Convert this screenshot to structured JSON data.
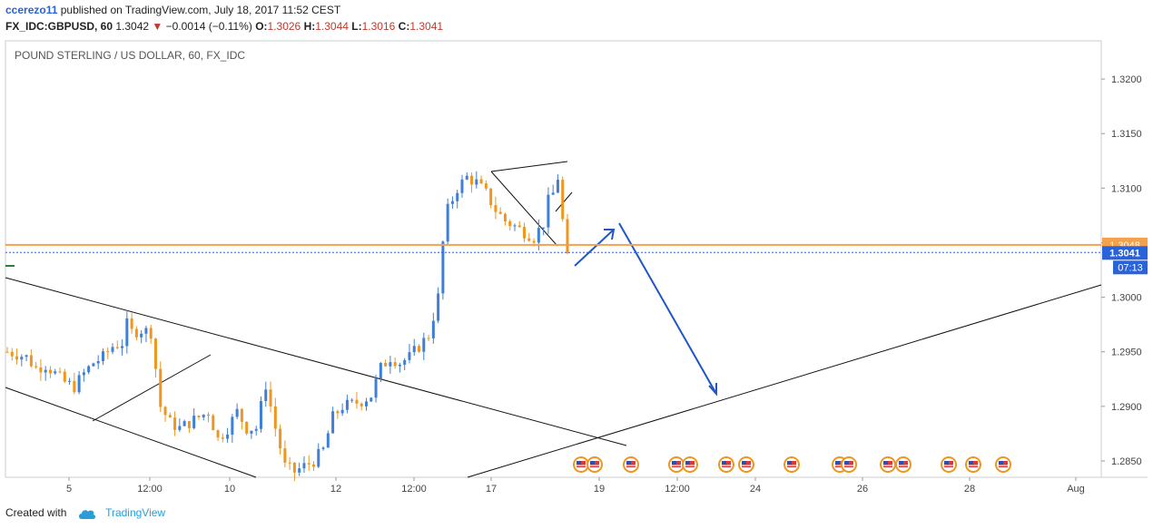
{
  "header": {
    "author": "ccerezo11",
    "published_text": "published on TradingView.com, July 18, 2017 11:52 CEST",
    "symbol": "FX_IDC:GBPUSD, 60",
    "last": "1.3042",
    "down_arrow": "▼",
    "change": "−0.0014 (−0.11%)",
    "o_label": "O:",
    "o_value": "1.3026",
    "h_label": "H:",
    "h_value": "1.3044",
    "l_label": "L:",
    "l_value": "1.3016",
    "c_label": "C:",
    "c_value": "1.3041"
  },
  "chart_data": {
    "type": "candlestick",
    "title": "POUND STERLING / US DOLLAR, 60, FX_IDC",
    "ylim": [
      1.2835,
      1.3235
    ],
    "y_ticks": [
      "1.3200",
      "1.3150",
      "1.3100",
      "1.3050",
      "1.3000",
      "1.2950",
      "1.2900",
      "1.2850"
    ],
    "x_ticks": [
      "5",
      "12:00",
      "10",
      "12",
      "12:00",
      "17",
      "19",
      "12:00",
      "24",
      "26",
      "28",
      "Aug"
    ],
    "resistance_level": {
      "value": 1.3048,
      "label": "1.3048",
      "color": "#f5a04b"
    },
    "last_price": {
      "value": 1.3041,
      "label": "1.3041",
      "countdown": "07:13",
      "color": "#2962d9"
    },
    "up_color": "#3f7fd6",
    "down_color": "#f0961e",
    "forecast_color": "#1f56c8",
    "price_path": [
      [
        0,
        1.295
      ],
      [
        2,
        1.2948
      ],
      [
        4,
        1.2945
      ],
      [
        6,
        1.2935
      ],
      [
        8,
        1.2938
      ],
      [
        10,
        1.293
      ],
      [
        12,
        1.2922
      ],
      [
        14,
        1.2918
      ],
      [
        16,
        1.293
      ],
      [
        18,
        1.294
      ],
      [
        20,
        1.2945
      ],
      [
        22,
        1.2955
      ],
      [
        24,
        1.2958
      ],
      [
        25,
        1.2975
      ],
      [
        26,
        1.2968
      ],
      [
        28,
        1.297
      ],
      [
        30,
        1.2968
      ],
      [
        31,
        1.2935
      ],
      [
        32,
        1.29
      ],
      [
        34,
        1.2885
      ],
      [
        36,
        1.288
      ],
      [
        38,
        1.2885
      ],
      [
        40,
        1.289
      ],
      [
        42,
        1.2895
      ],
      [
        44,
        1.287
      ],
      [
        46,
        1.288
      ],
      [
        48,
        1.2895
      ],
      [
        50,
        1.288
      ],
      [
        52,
        1.288
      ],
      [
        54,
        1.292
      ],
      [
        56,
        1.288
      ],
      [
        58,
        1.2845
      ],
      [
        60,
        1.284
      ],
      [
        62,
        1.2845
      ],
      [
        64,
        1.285
      ],
      [
        66,
        1.286
      ],
      [
        68,
        1.289
      ],
      [
        70,
        1.29
      ],
      [
        72,
        1.2902
      ],
      [
        74,
        1.2905
      ],
      [
        76,
        1.291
      ],
      [
        78,
        1.2935
      ],
      [
        80,
        1.2945
      ],
      [
        82,
        1.294
      ],
      [
        84,
        1.2945
      ],
      [
        86,
        1.2955
      ],
      [
        88,
        1.2965
      ],
      [
        90,
        1.3
      ],
      [
        91,
        1.305
      ],
      [
        92,
        1.308
      ],
      [
        94,
        1.31
      ],
      [
        96,
        1.311
      ],
      [
        98,
        1.3105
      ],
      [
        100,
        1.3095
      ],
      [
        102,
        1.308
      ],
      [
        104,
        1.307
      ],
      [
        106,
        1.3065
      ],
      [
        108,
        1.306
      ],
      [
        110,
        1.3055
      ],
      [
        112,
        1.3068
      ],
      [
        113,
        1.3088
      ],
      [
        114,
        1.3095
      ],
      [
        115,
        1.311
      ],
      [
        116,
        1.307
      ],
      [
        117,
        1.3035
      ]
    ]
  },
  "footer": {
    "created_with": "Created with",
    "brand": "TradingView"
  }
}
